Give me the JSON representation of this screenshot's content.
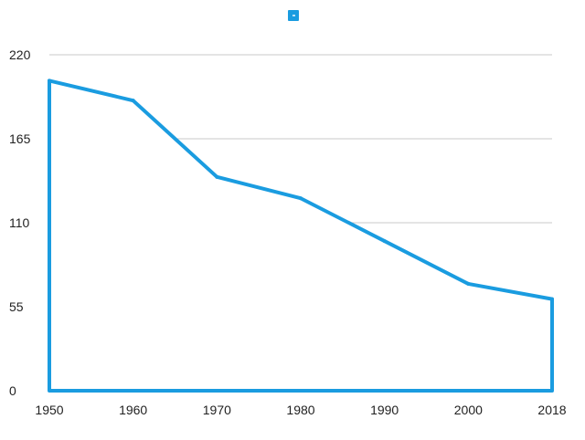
{
  "chart_data": {
    "type": "area",
    "categories": [
      "1950",
      "1960",
      "1970",
      "1980",
      "1990",
      "2000",
      "2018"
    ],
    "series": [
      {
        "values": [
          203,
          190,
          140,
          126,
          98,
          70,
          60
        ]
      }
    ],
    "y_ticks": [
      "0",
      "55",
      "110",
      "165",
      "220"
    ],
    "ylim": [
      0,
      220
    ],
    "grid": true,
    "legend_position": "top-center",
    "colors": {
      "series": "#1a9ce0",
      "legend_swatch": "#1a9ce0",
      "grid": "#c8c8c8",
      "axis": "#1a9ce0"
    }
  }
}
